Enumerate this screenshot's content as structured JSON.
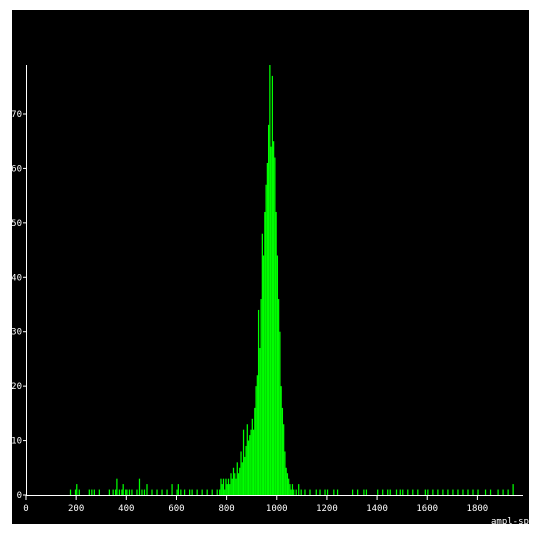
{
  "chart_data": {
    "type": "bar",
    "subtype": "histogram",
    "title": "",
    "xlabel": "ampl-spher",
    "ylabel": "",
    "xlim": [
      0,
      1950
    ],
    "ylim": [
      0,
      79
    ],
    "xticks": [
      0,
      200,
      400,
      600,
      800,
      1000,
      1200,
      1400,
      1600,
      1800
    ],
    "yticks": [
      0,
      10,
      20,
      30,
      40,
      50,
      60,
      70
    ],
    "bin_width": 5,
    "bar_color": "#00ff00",
    "background": "#000000",
    "axis_color": "#ffffff",
    "grid": false,
    "legend": "none",
    "series": [
      {
        "bins": [
          [
            175,
            1
          ],
          [
            195,
            1
          ],
          [
            200,
            2
          ],
          [
            210,
            1
          ],
          [
            250,
            1
          ],
          [
            260,
            1
          ],
          [
            270,
            1
          ],
          [
            290,
            1
          ],
          [
            330,
            1
          ],
          [
            345,
            1
          ],
          [
            355,
            1
          ],
          [
            360,
            3
          ],
          [
            370,
            1
          ],
          [
            380,
            1
          ],
          [
            385,
            2
          ],
          [
            395,
            1
          ],
          [
            400,
            1
          ],
          [
            410,
            1
          ],
          [
            420,
            1
          ],
          [
            440,
            1
          ],
          [
            450,
            3
          ],
          [
            460,
            1
          ],
          [
            470,
            1
          ],
          [
            480,
            2
          ],
          [
            500,
            1
          ],
          [
            520,
            1
          ],
          [
            540,
            1
          ],
          [
            560,
            1
          ],
          [
            580,
            2
          ],
          [
            600,
            1
          ],
          [
            605,
            2
          ],
          [
            615,
            1
          ],
          [
            630,
            1
          ],
          [
            650,
            1
          ],
          [
            660,
            1
          ],
          [
            680,
            1
          ],
          [
            700,
            1
          ],
          [
            720,
            1
          ],
          [
            740,
            1
          ],
          [
            760,
            1
          ],
          [
            770,
            1
          ],
          [
            775,
            3
          ],
          [
            780,
            2
          ],
          [
            785,
            3
          ],
          [
            790,
            1
          ],
          [
            795,
            3
          ],
          [
            800,
            2
          ],
          [
            805,
            3
          ],
          [
            810,
            2
          ],
          [
            815,
            4
          ],
          [
            820,
            3
          ],
          [
            825,
            5
          ],
          [
            830,
            4
          ],
          [
            835,
            3
          ],
          [
            840,
            6
          ],
          [
            845,
            4
          ],
          [
            850,
            5
          ],
          [
            855,
            8
          ],
          [
            860,
            6
          ],
          [
            865,
            12
          ],
          [
            870,
            7
          ],
          [
            875,
            9
          ],
          [
            880,
            13
          ],
          [
            885,
            10
          ],
          [
            890,
            11
          ],
          [
            895,
            12
          ],
          [
            900,
            14
          ],
          [
            905,
            12
          ],
          [
            910,
            16
          ],
          [
            915,
            20
          ],
          [
            920,
            22
          ],
          [
            925,
            34
          ],
          [
            930,
            27
          ],
          [
            935,
            36
          ],
          [
            940,
            48
          ],
          [
            945,
            44
          ],
          [
            950,
            52
          ],
          [
            955,
            57
          ],
          [
            960,
            61
          ],
          [
            965,
            68
          ],
          [
            970,
            79
          ],
          [
            975,
            64
          ],
          [
            980,
            77
          ],
          [
            985,
            65
          ],
          [
            990,
            62
          ],
          [
            995,
            52
          ],
          [
            1000,
            44
          ],
          [
            1005,
            36
          ],
          [
            1010,
            30
          ],
          [
            1015,
            20
          ],
          [
            1020,
            16
          ],
          [
            1025,
            13
          ],
          [
            1030,
            8
          ],
          [
            1035,
            5
          ],
          [
            1040,
            4
          ],
          [
            1045,
            3
          ],
          [
            1050,
            2
          ],
          [
            1055,
            1
          ],
          [
            1060,
            2
          ],
          [
            1065,
            1
          ],
          [
            1075,
            1
          ],
          [
            1085,
            2
          ],
          [
            1095,
            1
          ],
          [
            1110,
            1
          ],
          [
            1130,
            1
          ],
          [
            1155,
            1
          ],
          [
            1170,
            1
          ],
          [
            1190,
            1
          ],
          [
            1200,
            1
          ],
          [
            1225,
            1
          ],
          [
            1240,
            1
          ],
          [
            1300,
            1
          ],
          [
            1320,
            1
          ],
          [
            1345,
            1
          ],
          [
            1355,
            1
          ],
          [
            1400,
            1
          ],
          [
            1420,
            1
          ],
          [
            1440,
            1
          ],
          [
            1450,
            1
          ],
          [
            1475,
            1
          ],
          [
            1490,
            1
          ],
          [
            1500,
            1
          ],
          [
            1520,
            1
          ],
          [
            1540,
            1
          ],
          [
            1560,
            1
          ],
          [
            1590,
            1
          ],
          [
            1600,
            1
          ],
          [
            1620,
            1
          ],
          [
            1640,
            1
          ],
          [
            1660,
            1
          ],
          [
            1680,
            1
          ],
          [
            1700,
            1
          ],
          [
            1720,
            1
          ],
          [
            1740,
            1
          ],
          [
            1760,
            1
          ],
          [
            1780,
            1
          ],
          [
            1800,
            1
          ],
          [
            1830,
            1
          ],
          [
            1850,
            1
          ],
          [
            1880,
            1
          ],
          [
            1900,
            1
          ],
          [
            1920,
            1
          ],
          [
            1940,
            2
          ]
        ]
      }
    ]
  }
}
